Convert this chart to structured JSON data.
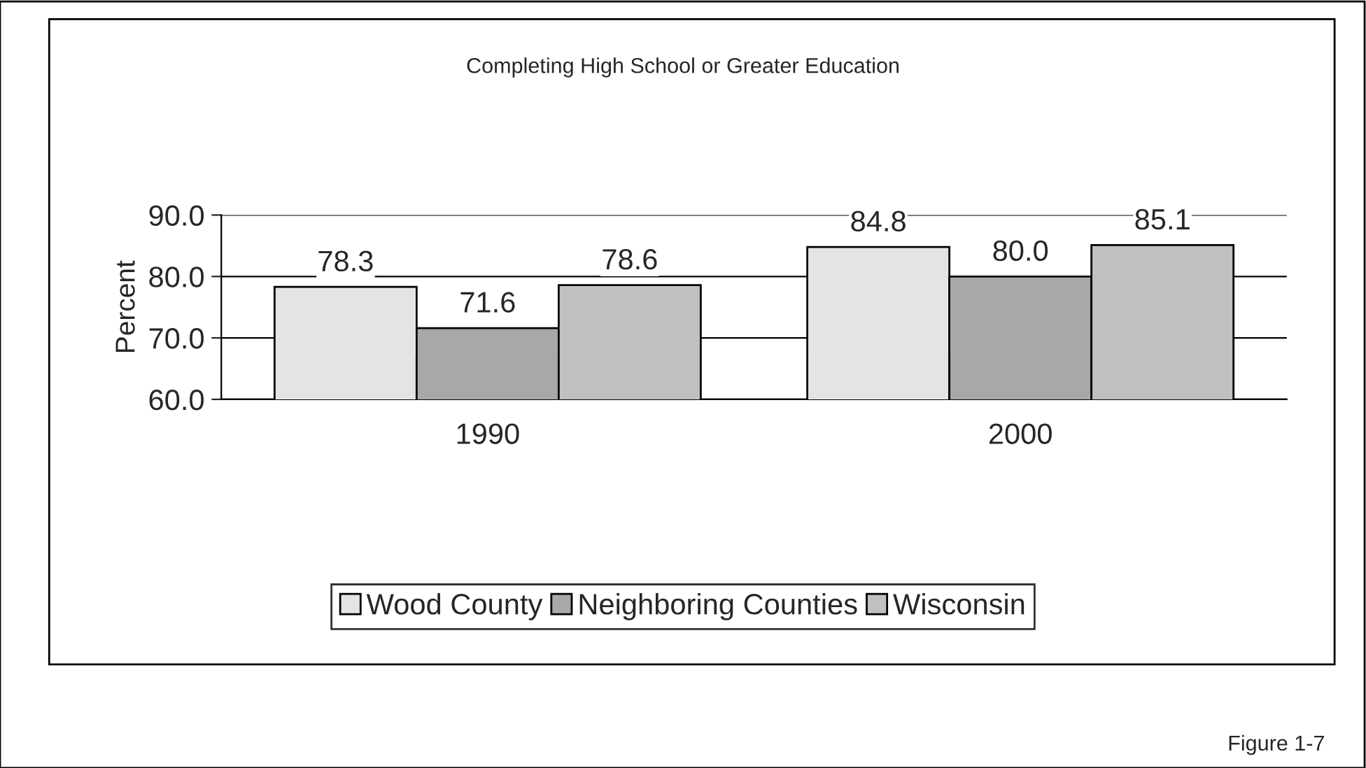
{
  "chart_data": {
    "type": "bar",
    "title": "Completing High School or Greater Education",
    "ylabel": "Percent",
    "categories": [
      "1990",
      "2000"
    ],
    "series": [
      {
        "name": "Wood County",
        "color": "#e4e4e4",
        "values": [
          78.3,
          84.8
        ],
        "value_labels": [
          "78.3",
          "84.8"
        ]
      },
      {
        "name": "Neighboring Counties",
        "color": "#a8a8a8",
        "values": [
          71.6,
          80.0
        ],
        "value_labels": [
          "71.6",
          "80.0"
        ]
      },
      {
        "name": "Wisconsin",
        "color": "#c0c0c0",
        "values": [
          78.6,
          85.1
        ],
        "value_labels": [
          "78.6",
          "85.1"
        ]
      }
    ],
    "ylim": [
      60,
      90
    ],
    "yticks": [
      {
        "value": 60,
        "label": "60.0"
      },
      {
        "value": 70,
        "label": "70.0"
      },
      {
        "value": 80,
        "label": "80.0"
      },
      {
        "value": 90,
        "label": "90.0"
      }
    ],
    "grid": "y",
    "legend": "bottom",
    "annotations": [
      "Figure 1-7"
    ]
  }
}
